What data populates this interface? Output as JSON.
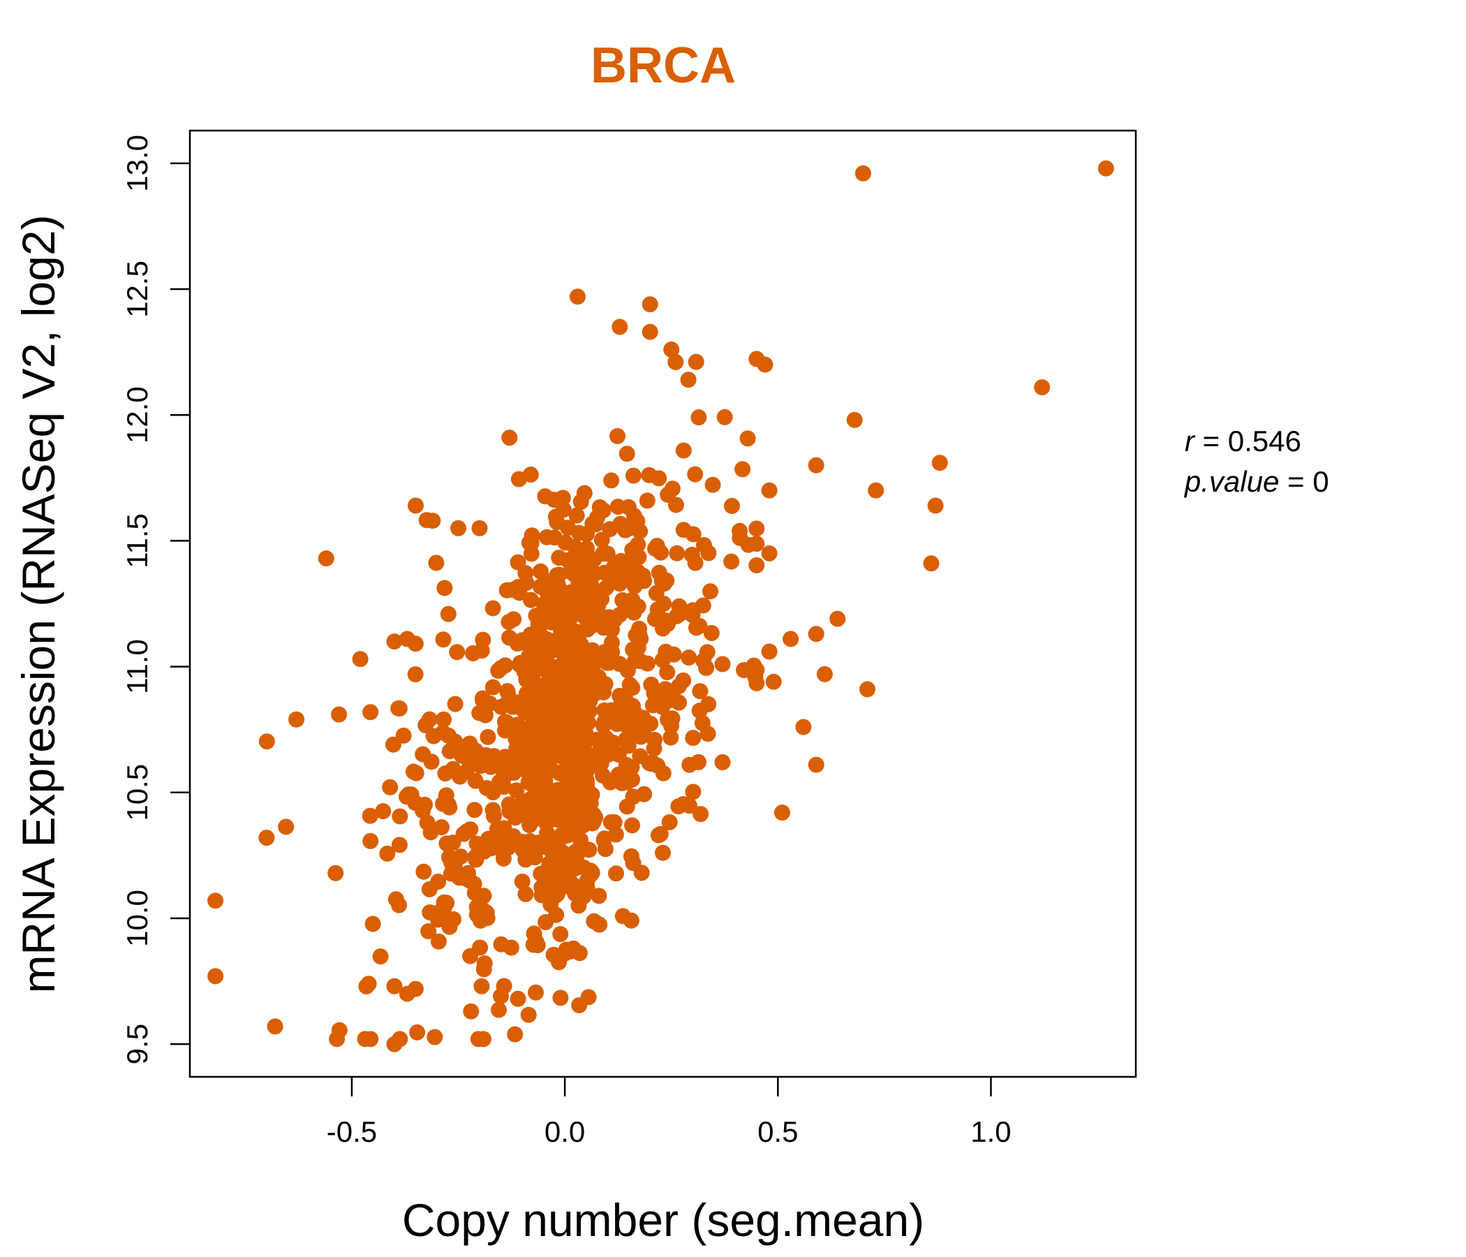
{
  "chart_data": {
    "type": "scatter",
    "title": "BRCA",
    "xlabel": "Copy number (seg.mean)",
    "ylabel": "mRNA Expression (RNASeq V2, log2)",
    "xlim": [
      -0.88,
      1.34
    ],
    "ylim": [
      9.37,
      13.13
    ],
    "x_ticks": [
      -0.5,
      0.0,
      0.5,
      1.0
    ],
    "x_tick_labels": [
      "-0.5",
      "0.0",
      "0.5",
      "1.0"
    ],
    "y_ticks": [
      9.5,
      10.0,
      10.5,
      11.0,
      11.5,
      12.0,
      12.5,
      13.0
    ],
    "y_tick_labels": [
      "9.5",
      "10.0",
      "10.5",
      "11.0",
      "11.5",
      "12.0",
      "12.5",
      "13.0"
    ],
    "grid": false,
    "point_color": "#d95f02",
    "title_color": "#d95f02",
    "annotation": {
      "r_label": "r",
      "r_value": "0.546",
      "p_label": "p.value",
      "p_value": "0"
    },
    "generation": {
      "n_cloud": 1050,
      "x_center": 0.0,
      "x_sd": 0.2,
      "y_intercept": 10.78,
      "slope": 1.2,
      "y_resid_sd": 0.42
    },
    "points": [
      [
        1.27,
        12.98
      ],
      [
        0.7,
        12.96
      ],
      [
        1.12,
        12.11
      ],
      [
        0.03,
        12.47
      ],
      [
        0.2,
        12.44
      ],
      [
        0.2,
        12.33
      ],
      [
        0.47,
        12.2
      ],
      [
        0.25,
        12.26
      ],
      [
        0.26,
        12.21
      ],
      [
        0.29,
        12.14
      ],
      [
        0.68,
        11.98
      ],
      [
        0.88,
        11.81
      ],
      [
        0.59,
        11.8
      ],
      [
        0.73,
        11.7
      ],
      [
        0.48,
        11.7
      ],
      [
        0.87,
        11.64
      ],
      [
        0.86,
        11.41
      ],
      [
        0.48,
        11.45
      ],
      [
        0.64,
        11.19
      ],
      [
        0.59,
        11.13
      ],
      [
        0.53,
        11.11
      ],
      [
        0.48,
        11.06
      ],
      [
        0.61,
        10.97
      ],
      [
        0.49,
        10.94
      ],
      [
        0.71,
        10.91
      ],
      [
        0.56,
        10.76
      ],
      [
        0.59,
        10.61
      ],
      [
        0.51,
        10.42
      ],
      [
        0.37,
        10.62
      ],
      [
        0.37,
        11.01
      ],
      [
        -0.56,
        11.43
      ],
      [
        -0.35,
        11.64
      ],
      [
        -0.31,
        11.58
      ],
      [
        -0.25,
        11.55
      ],
      [
        -0.2,
        11.55
      ],
      [
        -0.13,
        11.91
      ],
      [
        -0.82,
        10.07
      ],
      [
        -0.82,
        9.77
      ],
      [
        -0.68,
        9.57
      ],
      [
        -0.4,
        9.5
      ],
      [
        -0.22,
        9.63
      ],
      [
        -0.11,
        9.68
      ],
      [
        -0.4,
        9.73
      ],
      [
        -0.37,
        9.7
      ],
      [
        -0.7,
        10.32
      ],
      [
        -0.48,
        11.03
      ],
      [
        -0.4,
        11.1
      ],
      [
        -0.37,
        11.11
      ],
      [
        -0.63,
        10.79
      ],
      [
        -0.53,
        10.81
      ],
      [
        0.0,
        9.86
      ],
      [
        0.02,
        9.88
      ],
      [
        0.22,
        10.33
      ],
      [
        0.23,
        10.26
      ]
    ]
  }
}
